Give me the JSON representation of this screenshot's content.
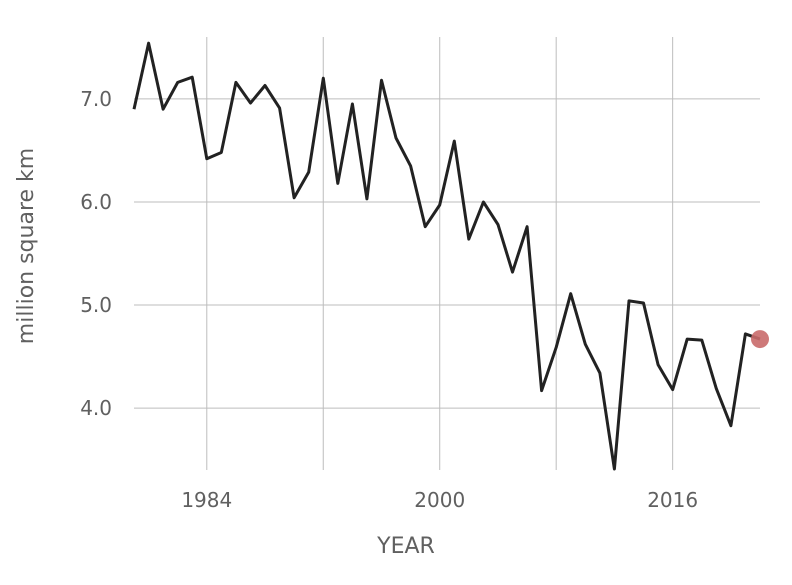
{
  "chart_data": {
    "type": "line",
    "title": "",
    "xlabel": "YEAR",
    "ylabel": "million square km",
    "xlim": [
      1979,
      2022
    ],
    "ylim": [
      3.4,
      7.6
    ],
    "x_ticks": [
      1984,
      2000,
      2016
    ],
    "x_gridlines": [
      1984,
      1992,
      2000,
      2008,
      2016
    ],
    "y_ticks": [
      4.0,
      5.0,
      6.0,
      7.0
    ],
    "y_tick_labels": [
      "4.0",
      "5.0",
      "6.0",
      "7.0"
    ],
    "grid": true,
    "line_color": "#222222",
    "highlight_color": "#c96a6a",
    "highlight_last_point": true,
    "series": [
      {
        "x": [
          1979,
          1980,
          1981,
          1982,
          1983,
          1984,
          1985,
          1986,
          1987,
          1988,
          1989,
          1990,
          1991,
          1992,
          1993,
          1994,
          1995,
          1996,
          1997,
          1998,
          1999,
          2000,
          2001,
          2002,
          2003,
          2004,
          2005,
          2006,
          2007,
          2008,
          2009,
          2010,
          2011,
          2012,
          2013,
          2014,
          2015,
          2016,
          2017,
          2018,
          2019,
          2020,
          2021
        ],
        "values": [
          6.9,
          7.54,
          6.9,
          7.16,
          7.21,
          6.42,
          6.48,
          7.16,
          6.96,
          7.13,
          6.91,
          6.04,
          6.29,
          7.2,
          6.18,
          6.95,
          6.03,
          7.18,
          6.62,
          6.35,
          5.76,
          5.97,
          6.59,
          5.64,
          6.0,
          5.78,
          5.32,
          5.76,
          4.17,
          4.59,
          5.11,
          4.62,
          4.34,
          3.41,
          5.04,
          5.02,
          4.42,
          4.18,
          4.67,
          4.66,
          4.19,
          3.83,
          4.72
        ]
      }
    ],
    "highlight_point": {
      "x": 2022,
      "y": 4.67
    }
  }
}
